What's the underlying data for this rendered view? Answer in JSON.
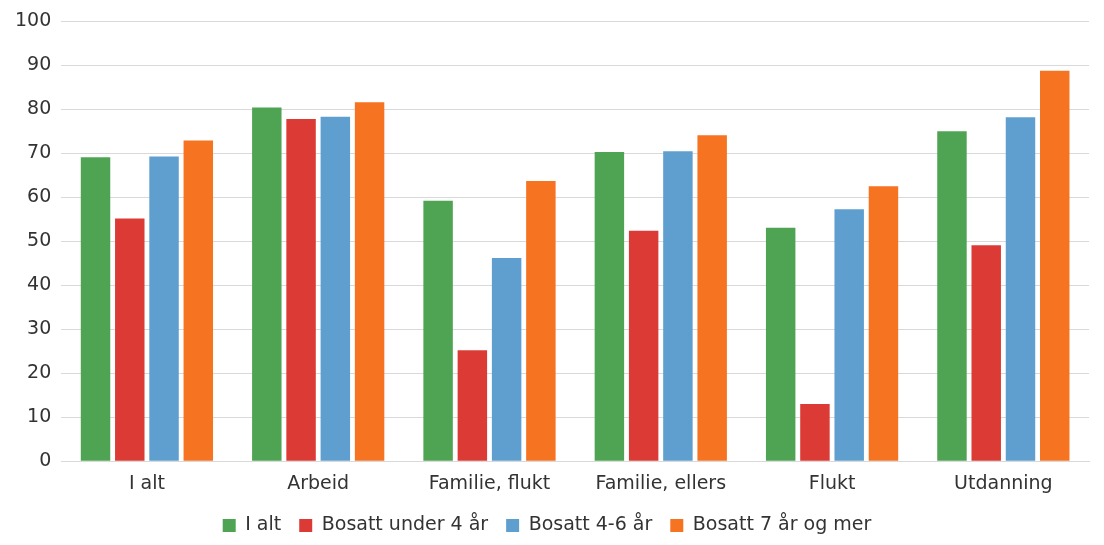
{
  "chart_data": {
    "type": "bar",
    "categories": [
      "I alt",
      "Arbeid",
      "Familie, flukt",
      "Familie, ellers",
      "Flukt",
      "Utdanning"
    ],
    "series": [
      {
        "name": "I alt",
        "color": "#4ea453",
        "values": [
          69.1,
          80.4,
          59.2,
          70.3,
          53.1,
          75.0
        ]
      },
      {
        "name": "Bosatt under 4 år",
        "color": "#dc3b35",
        "values": [
          55.2,
          77.8,
          25.2,
          52.4,
          13.0,
          49.1
        ]
      },
      {
        "name": "Bosatt 4-6 år",
        "color": "#5f9fd0",
        "values": [
          69.3,
          78.3,
          46.2,
          70.5,
          57.3,
          78.2
        ]
      },
      {
        "name": "Bosatt 7 år og mer",
        "color": "#f57321",
        "values": [
          72.9,
          81.6,
          63.7,
          74.1,
          62.5,
          88.8
        ]
      }
    ],
    "ylim": [
      0,
      100
    ],
    "yticks": [
      0,
      10,
      20,
      30,
      40,
      50,
      60,
      70,
      80,
      90,
      100
    ],
    "grid": "y",
    "legend": "bottom"
  }
}
